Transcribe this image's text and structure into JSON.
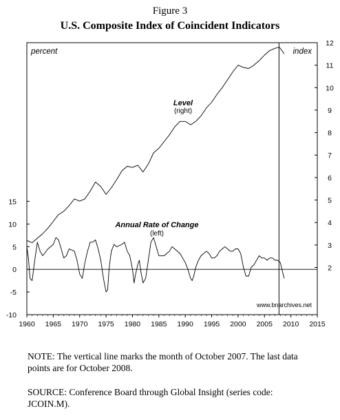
{
  "figure_label": "Figure 3",
  "title": "U.S. Composite Index of Coincident Indicators",
  "note": "NOTE: The vertical line marks the month of October 2007. The last data points are for October 2008.",
  "source": "SOURCE: Conference Board through Global Insight (series code: JCOIN.M).",
  "chart_data": {
    "type": "line",
    "x_ticks": [
      1960,
      1965,
      1970,
      1975,
      1980,
      1985,
      1990,
      1995,
      2000,
      2005,
      2010,
      2015
    ],
    "xlim": [
      1960,
      2015
    ],
    "left_axis": {
      "label": "percent",
      "ticks": [
        -10,
        -5,
        0,
        5,
        10,
        15
      ],
      "ylim": [
        -10,
        50
      ]
    },
    "right_axis": {
      "label": "index",
      "ticks": [
        2,
        3,
        4,
        5,
        6,
        7,
        8,
        9,
        10,
        11,
        12
      ],
      "ylim": [
        -0.1,
        12
      ]
    },
    "marker_line_x": 2007.75,
    "annotations": [
      {
        "title": "Level",
        "subtitle": "(right)"
      },
      {
        "title": "Annual Rate of Change",
        "subtitle": "(left)"
      }
    ],
    "watermark": "www.bnarchives.net",
    "series": [
      {
        "axis": "right",
        "x": [
          1960.0,
          1960.5,
          1961.0,
          1962.0,
          1963.0,
          1964.0,
          1965.0,
          1966.0,
          1967.0,
          1968.0,
          1969.0,
          1970.0,
          1971.0,
          1972.0,
          1973.0,
          1974.0,
          1975.0,
          1976.0,
          1977.0,
          1978.0,
          1979.0,
          1980.0,
          1981.0,
          1982.0,
          1983.0,
          1984.0,
          1985.0,
          1986.0,
          1987.0,
          1988.0,
          1989.0,
          1990.0,
          1991.0,
          1992.0,
          1993.0,
          1994.0,
          1995.0,
          1996.0,
          1997.0,
          1998.0,
          1999.0,
          2000.0,
          2001.0,
          2002.0,
          2003.0,
          2004.0,
          2005.0,
          2006.0,
          2007.0,
          2007.75,
          2008.0,
          2008.75
        ],
        "values": [
          3.2,
          3.15,
          3.1,
          3.3,
          3.5,
          3.75,
          4.05,
          4.35,
          4.5,
          4.75,
          5.05,
          4.95,
          5.05,
          5.4,
          5.8,
          5.6,
          5.25,
          5.55,
          5.9,
          6.3,
          6.5,
          6.45,
          6.55,
          6.25,
          6.6,
          7.1,
          7.3,
          7.6,
          7.9,
          8.25,
          8.5,
          8.5,
          8.35,
          8.5,
          8.75,
          9.1,
          9.35,
          9.7,
          10.0,
          10.35,
          10.7,
          11.0,
          10.9,
          10.85,
          11.0,
          11.2,
          11.45,
          11.65,
          11.75,
          11.8,
          11.75,
          11.5
        ]
      },
      {
        "axis": "left",
        "x": [
          1960.0,
          1960.3,
          1960.6,
          1961.0,
          1961.5,
          1962.0,
          1962.5,
          1963.0,
          1964.0,
          1965.0,
          1965.5,
          1966.0,
          1966.5,
          1967.0,
          1967.5,
          1968.0,
          1969.0,
          1969.5,
          1970.0,
          1970.5,
          1971.0,
          1971.5,
          1972.0,
          1972.5,
          1973.0,
          1973.5,
          1974.0,
          1974.5,
          1975.0,
          1975.3,
          1975.6,
          1976.0,
          1976.5,
          1977.0,
          1978.0,
          1978.5,
          1979.0,
          1979.5,
          1980.0,
          1980.3,
          1980.6,
          1981.0,
          1981.3,
          1981.6,
          1982.0,
          1982.5,
          1983.0,
          1983.5,
          1984.0,
          1984.5,
          1985.0,
          1986.0,
          1986.5,
          1987.0,
          1987.5,
          1988.0,
          1989.0,
          1990.0,
          1990.5,
          1991.0,
          1991.3,
          1991.6,
          1992.0,
          1992.5,
          1993.0,
          1994.0,
          1994.5,
          1995.0,
          1995.5,
          1996.0,
          1996.5,
          1997.0,
          1997.5,
          1998.0,
          1998.5,
          1999.0,
          1999.5,
          2000.0,
          2000.5,
          2001.0,
          2001.5,
          2002.0,
          2002.5,
          2003.0,
          2004.0,
          2004.5,
          2005.0,
          2005.5,
          2006.0,
          2006.5,
          2007.0,
          2007.5,
          2008.0,
          2008.4,
          2008.75
        ],
        "values": [
          5.0,
          2.5,
          -2.0,
          -2.5,
          2.0,
          6.0,
          4.0,
          3.0,
          4.5,
          5.5,
          7.0,
          6.5,
          4.5,
          2.5,
          3.0,
          4.5,
          4.0,
          2.0,
          -1.0,
          -2.0,
          1.5,
          4.0,
          6.0,
          6.0,
          6.5,
          4.5,
          2.0,
          -2.0,
          -5.0,
          -4.5,
          0.5,
          4.0,
          5.5,
          5.0,
          5.5,
          6.0,
          4.0,
          3.0,
          0.0,
          -3.0,
          -1.0,
          1.0,
          2.0,
          -0.5,
          -3.0,
          -2.0,
          2.0,
          6.0,
          7.0,
          5.0,
          3.0,
          3.0,
          3.5,
          4.0,
          5.0,
          4.5,
          3.5,
          1.5,
          0.0,
          -2.0,
          -2.5,
          -1.5,
          0.5,
          2.0,
          3.0,
          4.0,
          3.5,
          2.5,
          2.5,
          3.0,
          4.0,
          4.5,
          5.0,
          4.5,
          4.0,
          4.0,
          4.5,
          4.5,
          3.5,
          0.5,
          -1.5,
          -1.5,
          0.5,
          1.0,
          3.0,
          2.5,
          2.5,
          2.0,
          2.5,
          2.5,
          2.0,
          2.0,
          1.5,
          -0.5,
          -2.0
        ]
      }
    ]
  }
}
